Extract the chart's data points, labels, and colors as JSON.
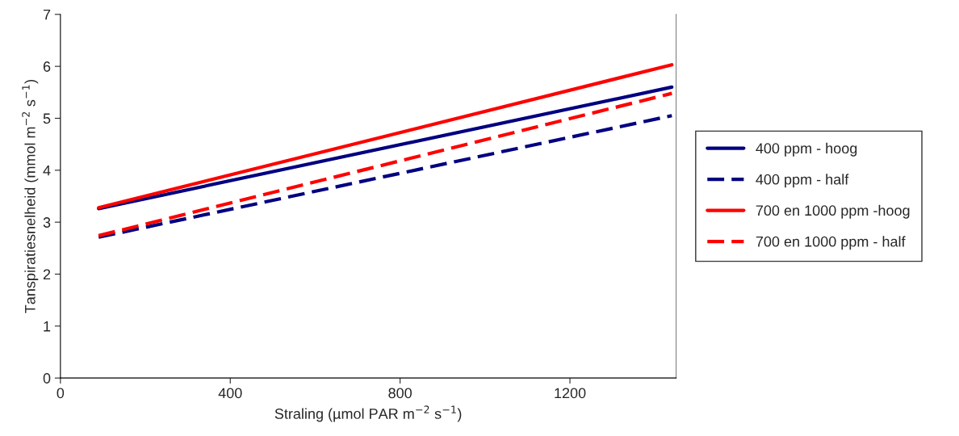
{
  "chart_data": {
    "type": "line",
    "xlabel": "Straling (µmol PAR m$^{−2}$ s$^{−1}$)",
    "ylabel": "Tanspiratiesnelheid (mmol m$^{−2}$ s$^{−1}$)",
    "xlim": [
      0,
      1450
    ],
    "xticks": [
      0,
      400,
      800,
      1200
    ],
    "ylim": [
      0,
      7
    ],
    "yticks": [
      0,
      1,
      2,
      3,
      4,
      5,
      6,
      7
    ],
    "grid": false,
    "legend": "right",
    "marker": "none",
    "x": [
      90,
      1440
    ],
    "series": [
      {
        "name": "400 ppm - hoog",
        "color": "#000080",
        "line_style": "solid",
        "values": [
          3.26,
          5.6
        ]
      },
      {
        "name": "400 ppm - half",
        "color": "#000080",
        "line_style": "dashed",
        "values": [
          2.71,
          5.05
        ]
      },
      {
        "name": "700 en 1000 ppm -hoog",
        "color": "#ff0000",
        "line_style": "solid",
        "values": [
          3.28,
          6.03
        ]
      },
      {
        "name": "700 en 1000 ppm - half",
        "color": "#ff0000",
        "line_style": "dashed",
        "values": [
          2.74,
          5.48
        ]
      }
    ]
  }
}
